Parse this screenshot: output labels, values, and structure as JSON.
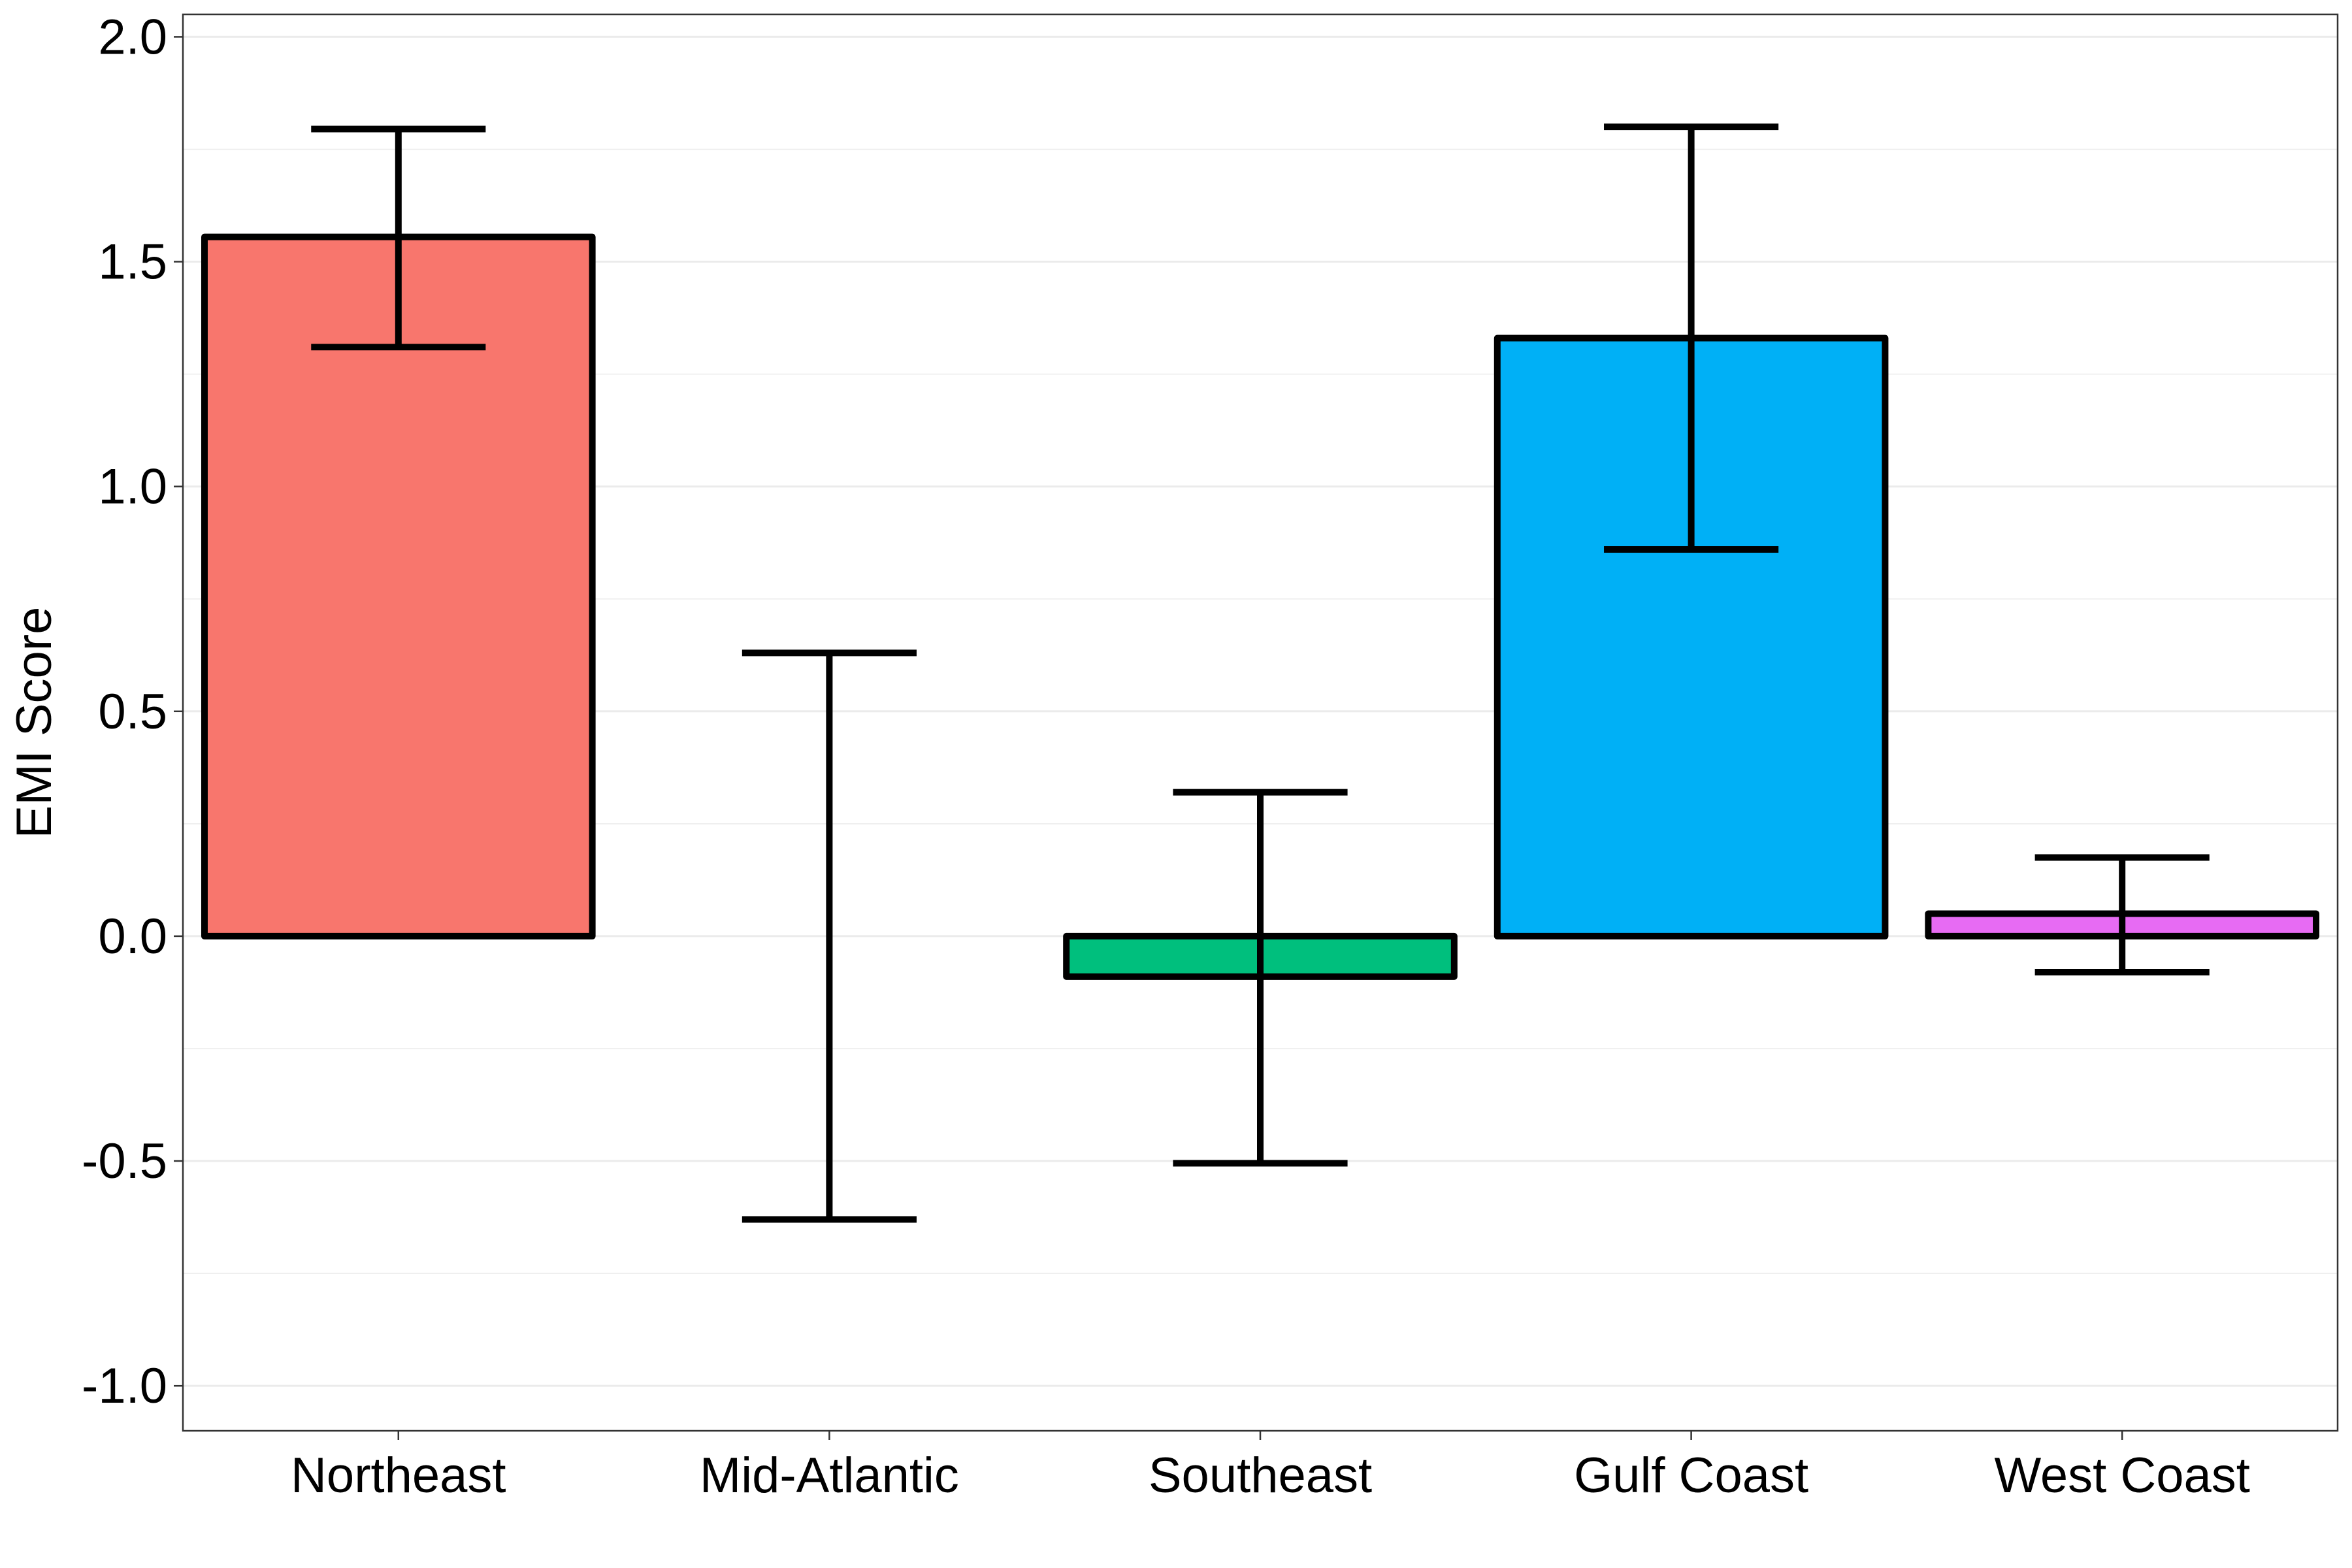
{
  "chart_data": {
    "type": "bar",
    "title": "",
    "xlabel": "",
    "ylabel": "EMI Score",
    "ylim": [
      -1.1,
      2.05
    ],
    "yticks": [
      -1.0,
      -0.5,
      0.0,
      0.5,
      1.0,
      1.5,
      2.0
    ],
    "ytick_labels": [
      "-1.0",
      "-0.5",
      "0.0",
      "0.5",
      "1.0",
      "1.5",
      "2.0"
    ],
    "grid": true,
    "legend": "none",
    "categories": [
      "Northeast",
      "Mid-Atlantic",
      "Southeast",
      "Gulf Coast",
      "West Coast"
    ],
    "values": [
      1.555,
      0.0,
      -0.09,
      1.33,
      0.05
    ],
    "error_low": [
      1.31,
      -0.63,
      -0.505,
      0.86,
      -0.08
    ],
    "error_high": [
      1.795,
      0.63,
      0.32,
      1.8,
      0.175
    ],
    "colors": [
      "#F8766D",
      "#A3A500",
      "#00BF7D",
      "#00B0F6",
      "#E76BF3"
    ]
  }
}
